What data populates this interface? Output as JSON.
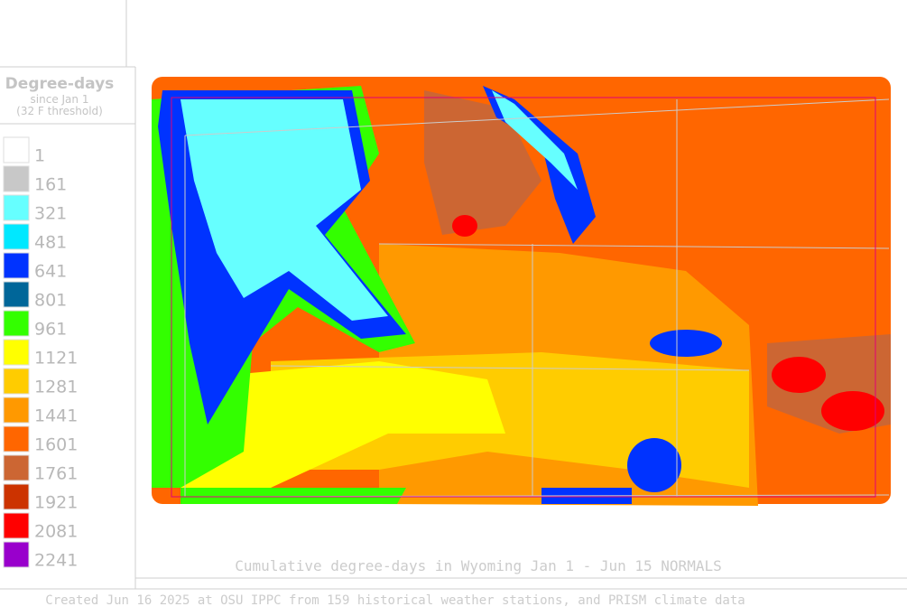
{
  "legend": {
    "title": "Degree-days",
    "subtitle": "since Jan 1",
    "threshold": "(32 F threshold)",
    "items": [
      {
        "label": "1",
        "color": "#ffffff"
      },
      {
        "label": "161",
        "color": "#c8c8c8"
      },
      {
        "label": "321",
        "color": "#66ffff"
      },
      {
        "label": "481",
        "color": "#00e8ff"
      },
      {
        "label": "641",
        "color": "#0033ff"
      },
      {
        "label": "801",
        "color": "#006699"
      },
      {
        "label": "961",
        "color": "#33ff00"
      },
      {
        "label": "1121",
        "color": "#ffff00"
      },
      {
        "label": "1281",
        "color": "#ffcc00"
      },
      {
        "label": "1441",
        "color": "#ff9900"
      },
      {
        "label": "1601",
        "color": "#ff6600"
      },
      {
        "label": "1761",
        "color": "#cc6633"
      },
      {
        "label": "1921",
        "color": "#cc3300"
      },
      {
        "label": "2081",
        "color": "#ff0000"
      },
      {
        "label": "2241",
        "color": "#9900cc"
      }
    ]
  },
  "caption": "Cumulative degree-days in Wyoming  Jan 1 - Jun 15 NORMALS",
  "footer": "Created Jun 16 2025 at OSU IPPC from 159 historical weather stations, and PRISM climate data"
}
